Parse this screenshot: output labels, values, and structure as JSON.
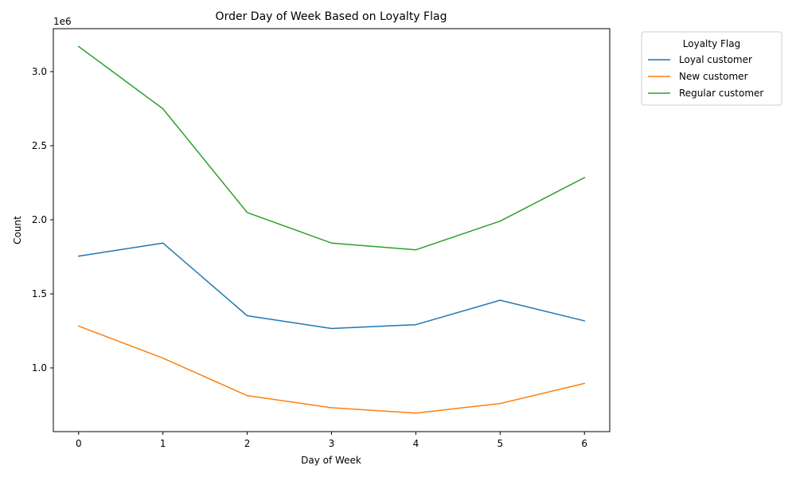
{
  "chart_data": {
    "type": "line",
    "title": "Order Day of Week Based on Loyalty Flag",
    "xlabel": "Day of Week",
    "ylabel": "Count",
    "y_offset_label": "1e6",
    "x": [
      0,
      1,
      2,
      3,
      4,
      5,
      6
    ],
    "x_ticks": [
      "0",
      "1",
      "2",
      "3",
      "4",
      "5",
      "6"
    ],
    "xlim": [
      -0.3,
      6.3
    ],
    "y_ticks": [
      1000000,
      1500000,
      2000000,
      2500000,
      3000000
    ],
    "y_tick_labels": [
      "1.0",
      "1.5",
      "2.0",
      "2.5",
      "3.0"
    ],
    "ylim": [
      570000,
      3290000
    ],
    "grid": false,
    "legend": {
      "title": "Loyalty Flag",
      "placement": "outside-top-right"
    },
    "series": [
      {
        "name": "Loyal customer",
        "color": "#1f77b4",
        "values": [
          1755000,
          1843000,
          1352000,
          1266000,
          1292000,
          1457000,
          1318000
        ]
      },
      {
        "name": "New customer",
        "color": "#ff7f0e",
        "values": [
          1282000,
          1066000,
          813000,
          731000,
          695000,
          760000,
          896000
        ]
      },
      {
        "name": "Regular customer",
        "color": "#2ca02c",
        "values": [
          3170000,
          2749000,
          2049000,
          1843000,
          1797000,
          1991000,
          2285000
        ]
      }
    ]
  }
}
